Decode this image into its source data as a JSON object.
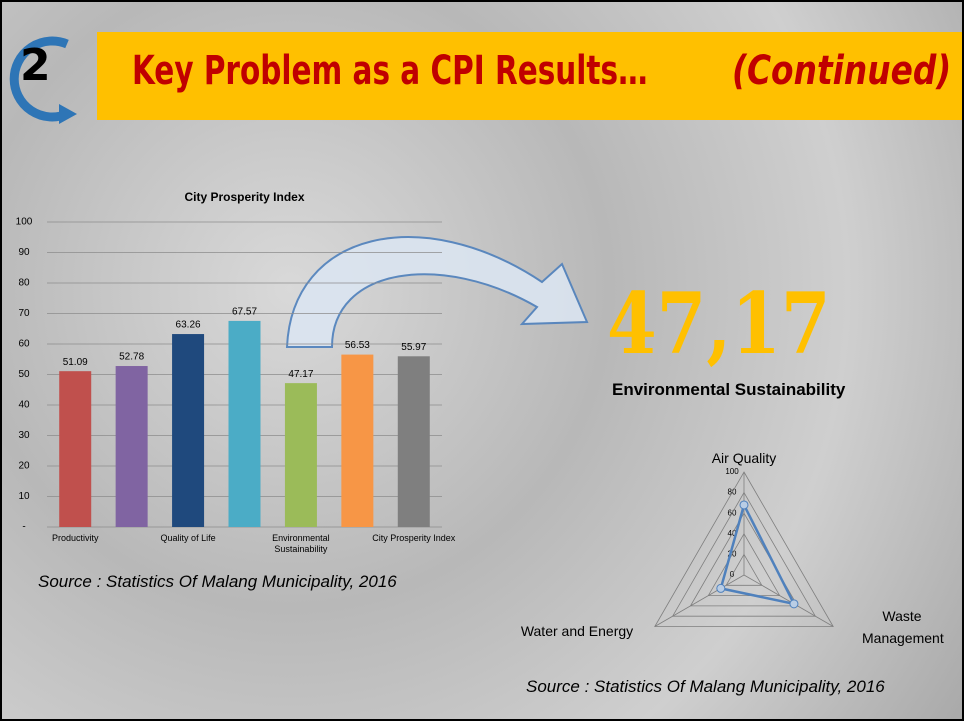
{
  "slide": {
    "number": "2",
    "title": "Key Problem as a CPI Results…",
    "title_note": "(Continued)",
    "highlight_value": "47,17",
    "highlight_label": "Environmental Sustainability",
    "sources": [
      "Source : Statistics Of  Malang Municipality, 2016",
      "Source : Statistics Of  Malang Municipality, 2016"
    ]
  },
  "chart_data": [
    {
      "type": "bar",
      "title": "City Prosperity Index",
      "categories": [
        "Productivity",
        null,
        "Quality of Life",
        null,
        "Environmental Sustainability",
        null,
        "City Prosperity Index"
      ],
      "values": [
        51.09,
        52.78,
        63.26,
        67.57,
        47.17,
        56.53,
        55.97
      ],
      "colors": [
        "#c0504d",
        "#8064a2",
        "#1f497d",
        "#4bacc6",
        "#9bbb59",
        "#f79646",
        "#7f7f7f"
      ],
      "ylim": [
        0,
        100
      ],
      "yticks": [
        {
          "value": 0,
          "label": "-"
        },
        10,
        20,
        30,
        40,
        50,
        60,
        70,
        80,
        90,
        100
      ],
      "grid": true
    },
    {
      "type": "radar",
      "categories": [
        "Air Quality",
        "Waste Management",
        "Water and Energy"
      ],
      "values": [
        68,
        56,
        26
      ],
      "color": "#4f81bd",
      "ylim": [
        0,
        100
      ],
      "yticks": [
        0,
        20,
        40,
        60,
        80,
        100
      ],
      "grid": true
    }
  ]
}
